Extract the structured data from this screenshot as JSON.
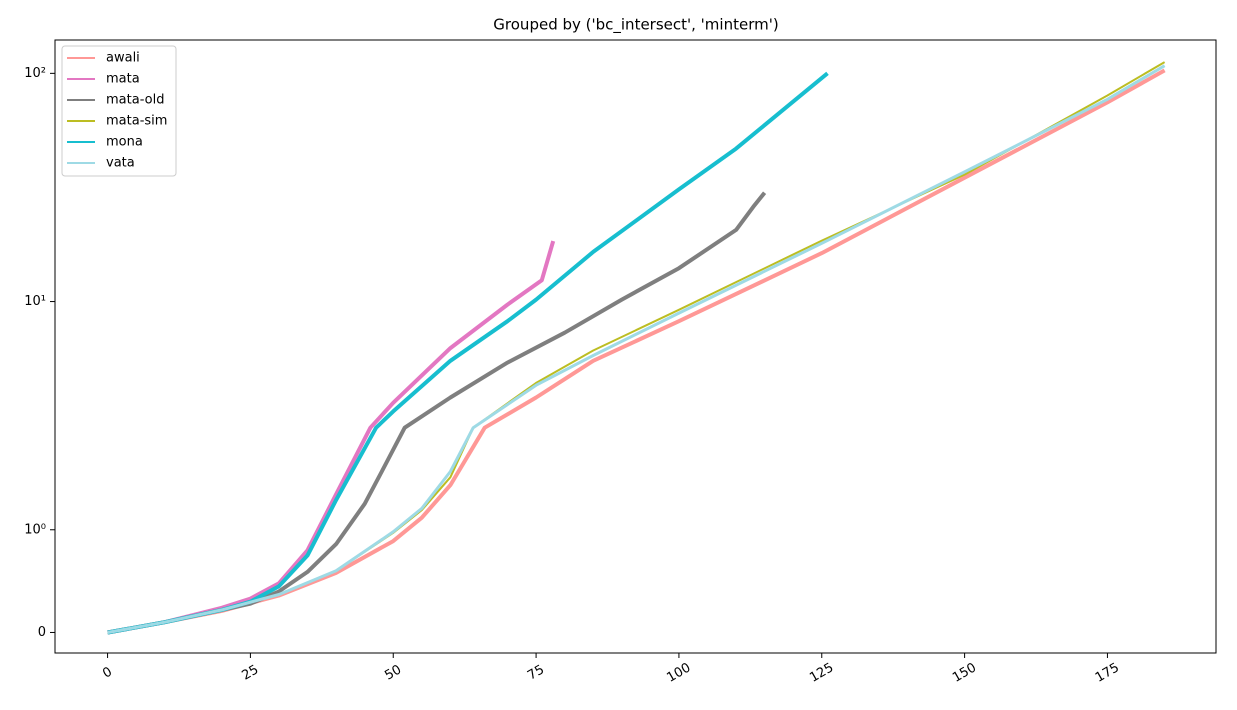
{
  "chart_data": {
    "type": "line",
    "title": "Grouped by ('bc_intersect', 'minterm')",
    "yscale": "symlog",
    "legend": "upper left",
    "xlim": [
      -9.2,
      194
    ],
    "xticks": [
      0,
      25,
      50,
      75,
      100,
      125,
      150,
      175
    ],
    "ylim": [
      -0.2,
      140
    ],
    "yticks": [
      0,
      {
        "value": 1,
        "label": "10⁰"
      },
      {
        "value": 10,
        "label": "10¹"
      },
      {
        "value": 100,
        "label": "10²"
      }
    ],
    "series": [
      {
        "name": "awali",
        "color": "#ff9896",
        "width": 4,
        "x": [
          0,
          10,
          20,
          30,
          40,
          50,
          55,
          60,
          66,
          75,
          85,
          100,
          125,
          150,
          175,
          185
        ],
        "values": [
          0,
          0.1,
          0.21,
          0.36,
          0.58,
          0.89,
          1.13,
          1.57,
          2.8,
          3.8,
          5.5,
          8.2,
          16.3,
          34.9,
          74.6,
          103
        ]
      },
      {
        "name": "mata",
        "color": "#e377c2",
        "width": 4,
        "x": [
          0,
          10,
          20,
          25,
          30,
          35,
          40,
          46,
          50,
          60,
          70,
          76,
          78
        ],
        "values": [
          0,
          0.1,
          0.24,
          0.33,
          0.48,
          0.8,
          1.43,
          2.8,
          3.6,
          6.25,
          9.7,
          12.4,
          18.4
        ]
      },
      {
        "name": "mata-old",
        "color": "#7f7f7f",
        "width": 4,
        "x": [
          0,
          10,
          20,
          25,
          30,
          35,
          40,
          45,
          48,
          52,
          60,
          70,
          80,
          90,
          100,
          110,
          113,
          115
        ],
        "values": [
          0,
          0.1,
          0.22,
          0.28,
          0.4,
          0.59,
          0.86,
          1.3,
          1.8,
          2.8,
          3.8,
          5.4,
          7.3,
          10.2,
          14,
          20.6,
          26,
          30
        ]
      },
      {
        "name": "mata-sim",
        "color": "#bcbd22",
        "width": 2,
        "x": [
          0,
          10,
          20,
          30,
          40,
          50,
          55,
          60,
          64,
          75,
          85,
          100,
          125,
          150,
          175,
          185
        ],
        "values": [
          0,
          0.1,
          0.22,
          0.37,
          0.6,
          0.97,
          1.22,
          1.7,
          2.8,
          4.4,
          6.1,
          9.2,
          18.5,
          36,
          80,
          112
        ]
      },
      {
        "name": "mona",
        "color": "#17becf",
        "width": 4,
        "x": [
          0,
          10,
          20,
          25,
          30,
          35,
          40,
          47,
          50,
          60,
          70,
          75,
          85,
          100,
          110,
          126
        ],
        "values": [
          0,
          0.1,
          0.22,
          0.3,
          0.45,
          0.75,
          1.35,
          2.8,
          3.3,
          5.5,
          8.2,
          10.2,
          16.5,
          31,
          46.8,
          100
        ]
      },
      {
        "name": "vata",
        "color": "#9edae5",
        "width": 3,
        "x": [
          0,
          10,
          20,
          30,
          40,
          50,
          55,
          60,
          64,
          75,
          85,
          100,
          125,
          150,
          175,
          185
        ],
        "values": [
          0,
          0.1,
          0.22,
          0.37,
          0.6,
          0.98,
          1.24,
          1.8,
          2.8,
          4.3,
          5.8,
          8.9,
          18,
          37,
          77,
          108
        ]
      }
    ]
  }
}
